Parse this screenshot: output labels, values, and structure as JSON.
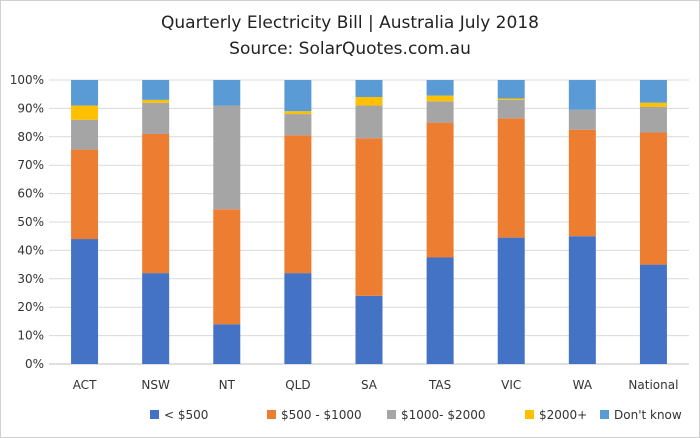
{
  "chart_data": {
    "type": "bar",
    "stacked": true,
    "title": "Quarterly Electricity Bill | Australia July 2018",
    "subtitle": "Source: SolarQuotes.com.au",
    "categories": [
      "ACT",
      "NSW",
      "NT",
      "QLD",
      "SA",
      "TAS",
      "VIC",
      "WA",
      "National"
    ],
    "ylim": [
      0,
      100
    ],
    "yticks": [
      "0%",
      "10%",
      "20%",
      "30%",
      "40%",
      "50%",
      "60%",
      "70%",
      "80%",
      "90%",
      "100%"
    ],
    "grid": true,
    "legend_position": "bottom",
    "series": [
      {
        "name": "< $500",
        "color": "#4472c4",
        "values": [
          44,
          32,
          14,
          32,
          24,
          37.5,
          44.5,
          45,
          35
        ]
      },
      {
        "name": "$500 - $1000",
        "color": "#ed7d31",
        "values": [
          31.5,
          49,
          40.5,
          48.5,
          55.5,
          47.5,
          42,
          37.5,
          46.5
        ]
      },
      {
        "name": "$1000- $2000",
        "color": "#a5a5a5",
        "values": [
          10.5,
          11,
          36.5,
          7.5,
          11.5,
          7.5,
          6.5,
          7,
          9
        ]
      },
      {
        "name": "$2000+",
        "color": "#ffc000",
        "values": [
          5,
          1,
          0,
          1,
          3,
          2,
          0.5,
          0,
          1.5
        ]
      },
      {
        "name": "Don't know",
        "color": "#5b9bd5",
        "values": [
          9,
          7,
          9,
          11,
          6,
          5.5,
          6.5,
          10.5,
          8
        ]
      }
    ]
  }
}
